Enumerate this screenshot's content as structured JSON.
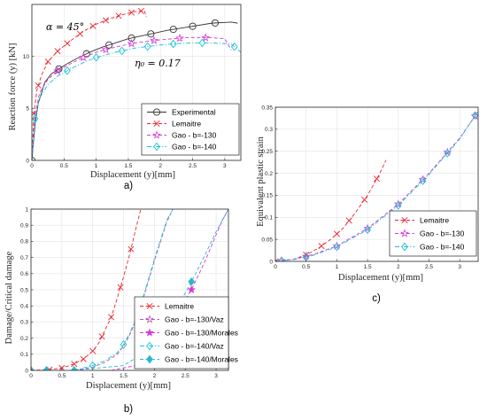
{
  "colors": {
    "experimental": "#333333",
    "lemaitre": "#e8262d",
    "gao130": "#d63ad6",
    "gao140": "#17c3d2",
    "gao130_alt": "#b455b4",
    "gao140_alt": "#29b8d0",
    "axis": "#262626",
    "grid": "#e4e4e4"
  },
  "chart_data": [
    {
      "type": "line",
      "panel_label": "a)",
      "xlabel": "Displacement (y)[mm]",
      "ylabel": "Reaction force (y) [kN]",
      "xlim": [
        0,
        3.25
      ],
      "ylim": [
        0,
        15
      ],
      "xticks": [
        0,
        0.5,
        1,
        1.5,
        2,
        2.5,
        3
      ],
      "yticks": [
        0,
        5,
        10
      ],
      "grid": true,
      "legend_position": "bottom-right",
      "annotations": [
        "α = 45°",
        "η₀ = 0.17"
      ],
      "series": [
        {
          "name": "Experimental",
          "color_key": "experimental",
          "line": "solid",
          "marker": "circle",
          "x": [
            0,
            0.05,
            0.1,
            0.2,
            0.3,
            0.42,
            0.55,
            0.7,
            0.9,
            1.1,
            1.3,
            1.5,
            1.8,
            2.1,
            2.4,
            2.8,
            3.1,
            3.2
          ],
          "y": [
            0,
            3.5,
            5.5,
            7.5,
            8.3,
            8.8,
            9.3,
            9.8,
            10.4,
            10.9,
            11.3,
            11.7,
            12.1,
            12.5,
            12.8,
            13.2,
            13.3,
            13.2
          ],
          "marker_x": [
            0,
            0.42,
            0.85,
            1.2,
            1.55,
            1.85,
            2.2,
            2.5,
            2.85
          ]
        },
        {
          "name": "Lemaitre",
          "color_key": "lemaitre",
          "line": "dashed",
          "marker": "x",
          "x": [
            0,
            0.03,
            0.08,
            0.15,
            0.25,
            0.4,
            0.6,
            0.8,
            1.0,
            1.2,
            1.4,
            1.6,
            1.75,
            1.78
          ],
          "y": [
            0,
            4.5,
            6.8,
            8.2,
            9.5,
            10.5,
            11.5,
            12.4,
            13.1,
            13.6,
            14.0,
            14.3,
            14.4,
            13.8
          ],
          "marker_x": [
            0.03,
            0.1,
            0.25,
            0.4,
            0.55,
            0.75,
            0.95,
            1.15,
            1.35,
            1.55,
            1.7
          ]
        },
        {
          "name": "Gao - b=-130",
          "color_key": "gao130",
          "line": "dashed",
          "marker": "star",
          "x": [
            0,
            0.05,
            0.12,
            0.25,
            0.4,
            0.6,
            0.8,
            1.0,
            1.3,
            1.6,
            2.0,
            2.4,
            2.8,
            3.0,
            3.1
          ],
          "y": [
            0,
            4.5,
            6.5,
            7.8,
            8.6,
            9.3,
            9.9,
            10.4,
            10.9,
            11.3,
            11.6,
            11.8,
            11.8,
            11.7,
            10.6
          ],
          "marker_x": [
            0.4,
            0.8,
            1.15,
            1.55,
            1.9,
            2.3,
            2.7
          ]
        },
        {
          "name": "Gao - b=-140",
          "color_key": "gao140",
          "line": "dashdot",
          "marker": "diamond",
          "x": [
            0,
            0.05,
            0.12,
            0.25,
            0.4,
            0.6,
            0.8,
            1.0,
            1.3,
            1.6,
            2.0,
            2.4,
            2.8,
            3.1,
            3.25
          ],
          "y": [
            0,
            4.0,
            6.0,
            7.3,
            8.1,
            8.8,
            9.4,
            9.9,
            10.4,
            10.8,
            11.1,
            11.3,
            11.3,
            11.2,
            10.4
          ],
          "marker_x": [
            0.05,
            0.55,
            1.0,
            1.4,
            1.8,
            2.2,
            2.65,
            3.15
          ]
        }
      ]
    },
    {
      "type": "line",
      "panel_label": "b)",
      "xlabel": "Displacement (y)[mm]",
      "ylabel": "Damage/Critical damage",
      "xlim": [
        0,
        3.2
      ],
      "ylim": [
        0,
        1
      ],
      "xticks": [
        0,
        0.5,
        1,
        1.5,
        2,
        2.5,
        3
      ],
      "yticks": [
        0,
        0.1,
        0.2,
        0.3,
        0.4,
        0.5,
        0.6,
        0.7,
        0.8,
        0.9,
        1
      ],
      "grid": true,
      "legend_position": "bottom-right",
      "series": [
        {
          "name": "Lemaitre",
          "color_key": "lemaitre",
          "line": "dashed",
          "marker": "x",
          "x": [
            0,
            0.3,
            0.5,
            0.7,
            0.85,
            1.0,
            1.1,
            1.2,
            1.3,
            1.4,
            1.5,
            1.6,
            1.7,
            1.78
          ],
          "y": [
            0,
            0.005,
            0.015,
            0.04,
            0.07,
            0.12,
            0.17,
            0.25,
            0.33,
            0.45,
            0.58,
            0.72,
            0.88,
            1.0
          ],
          "marker_x": [
            0.3,
            0.5,
            0.7,
            0.85,
            1.0,
            1.15,
            1.3,
            1.45,
            1.62
          ]
        },
        {
          "name": "Gao - b=-130/Vaz",
          "color_key": "gao130_alt",
          "line": "dashed",
          "marker": "star-open",
          "x": [
            0.7,
            1.0,
            1.2,
            1.4,
            1.5,
            1.6,
            1.7,
            1.8,
            1.9,
            2.0,
            2.1,
            2.2,
            2.3
          ],
          "y": [
            0,
            0.02,
            0.05,
            0.1,
            0.15,
            0.22,
            0.31,
            0.42,
            0.55,
            0.68,
            0.8,
            0.92,
            1.0
          ],
          "marker_x": [
            1.8
          ]
        },
        {
          "name": "Gao - b=-130/Morales",
          "color_key": "gao130",
          "line": "dashed",
          "marker": "star-filled",
          "x": [
            1.3,
            1.7,
            2.0,
            2.2,
            2.4,
            2.6,
            2.8,
            2.9,
            3.0,
            3.1,
            3.2
          ],
          "y": [
            0,
            0.03,
            0.13,
            0.24,
            0.37,
            0.5,
            0.66,
            0.75,
            0.84,
            0.93,
            1.0
          ],
          "marker_x": [
            2.6
          ]
        },
        {
          "name": "Gao - b=-140/Vaz",
          "color_key": "gao140",
          "line": "dashdot",
          "marker": "diamond-open",
          "x": [
            0.7,
            1.0,
            1.2,
            1.4,
            1.5,
            1.6,
            1.7,
            1.8,
            1.9,
            2.0,
            2.1,
            2.2,
            2.3
          ],
          "y": [
            0,
            0.03,
            0.06,
            0.11,
            0.16,
            0.23,
            0.32,
            0.43,
            0.56,
            0.69,
            0.81,
            0.93,
            1.0
          ],
          "marker_x": [
            0,
            0.25,
            0.7,
            1.0,
            1.5,
            1.8
          ]
        },
        {
          "name": "Gao - b=-140/Morales",
          "color_key": "gao140_alt",
          "line": "dashed",
          "marker": "diamond-filled",
          "x": [
            0.7,
            1.5,
            1.8,
            2.0,
            2.2,
            2.4,
            2.6,
            2.8,
            3.0,
            3.1,
            3.2
          ],
          "y": [
            0,
            0.03,
            0.1,
            0.18,
            0.29,
            0.41,
            0.55,
            0.7,
            0.86,
            0.93,
            1.0
          ],
          "marker_x": [
            0,
            0.25,
            0.7,
            2.6
          ]
        }
      ]
    },
    {
      "type": "line",
      "panel_label": "c)",
      "xlabel": "Displacement (y)[mm]",
      "ylabel": "Equivalent plastic strain",
      "xlim": [
        0,
        3.3
      ],
      "ylim": [
        0,
        0.35
      ],
      "xticks": [
        0,
        0.5,
        1,
        1.5,
        2,
        2.5,
        3
      ],
      "yticks": [
        0,
        0.05,
        0.1,
        0.15,
        0.2,
        0.25,
        0.3,
        0.35
      ],
      "grid": true,
      "legend_position": "bottom-right",
      "series": [
        {
          "name": "Lemaitre",
          "color_key": "lemaitre",
          "line": "dashed",
          "marker": "x",
          "x": [
            0,
            0.3,
            0.5,
            0.7,
            0.9,
            1.1,
            1.3,
            1.5,
            1.7,
            1.8
          ],
          "y": [
            0,
            0.005,
            0.015,
            0.03,
            0.05,
            0.075,
            0.11,
            0.15,
            0.2,
            0.23
          ],
          "marker_x": [
            0,
            0.5,
            0.75,
            1.0,
            1.2,
            1.45,
            1.65
          ]
        },
        {
          "name": "Gao - b=-130",
          "color_key": "gao130",
          "line": "dashed",
          "marker": "star",
          "x": [
            0,
            0.3,
            0.6,
            1.0,
            1.5,
            2.0,
            2.5,
            3.0,
            3.3
          ],
          "y": [
            0,
            0.005,
            0.015,
            0.035,
            0.075,
            0.13,
            0.2,
            0.28,
            0.34
          ],
          "marker_x": [
            0.1,
            0.5,
            1.0,
            1.5,
            2.0,
            2.4,
            2.8,
            3.25
          ]
        },
        {
          "name": "Gao - b=-140",
          "color_key": "gao140",
          "line": "dashdot",
          "marker": "diamond",
          "x": [
            0,
            0.3,
            0.6,
            1.0,
            1.5,
            2.0,
            2.5,
            3.0,
            3.3
          ],
          "y": [
            0,
            0.004,
            0.013,
            0.033,
            0.072,
            0.127,
            0.197,
            0.278,
            0.342
          ],
          "marker_x": [
            0.1,
            0.5,
            1.0,
            1.5,
            2.0,
            2.4,
            2.8,
            3.25
          ]
        }
      ]
    }
  ]
}
